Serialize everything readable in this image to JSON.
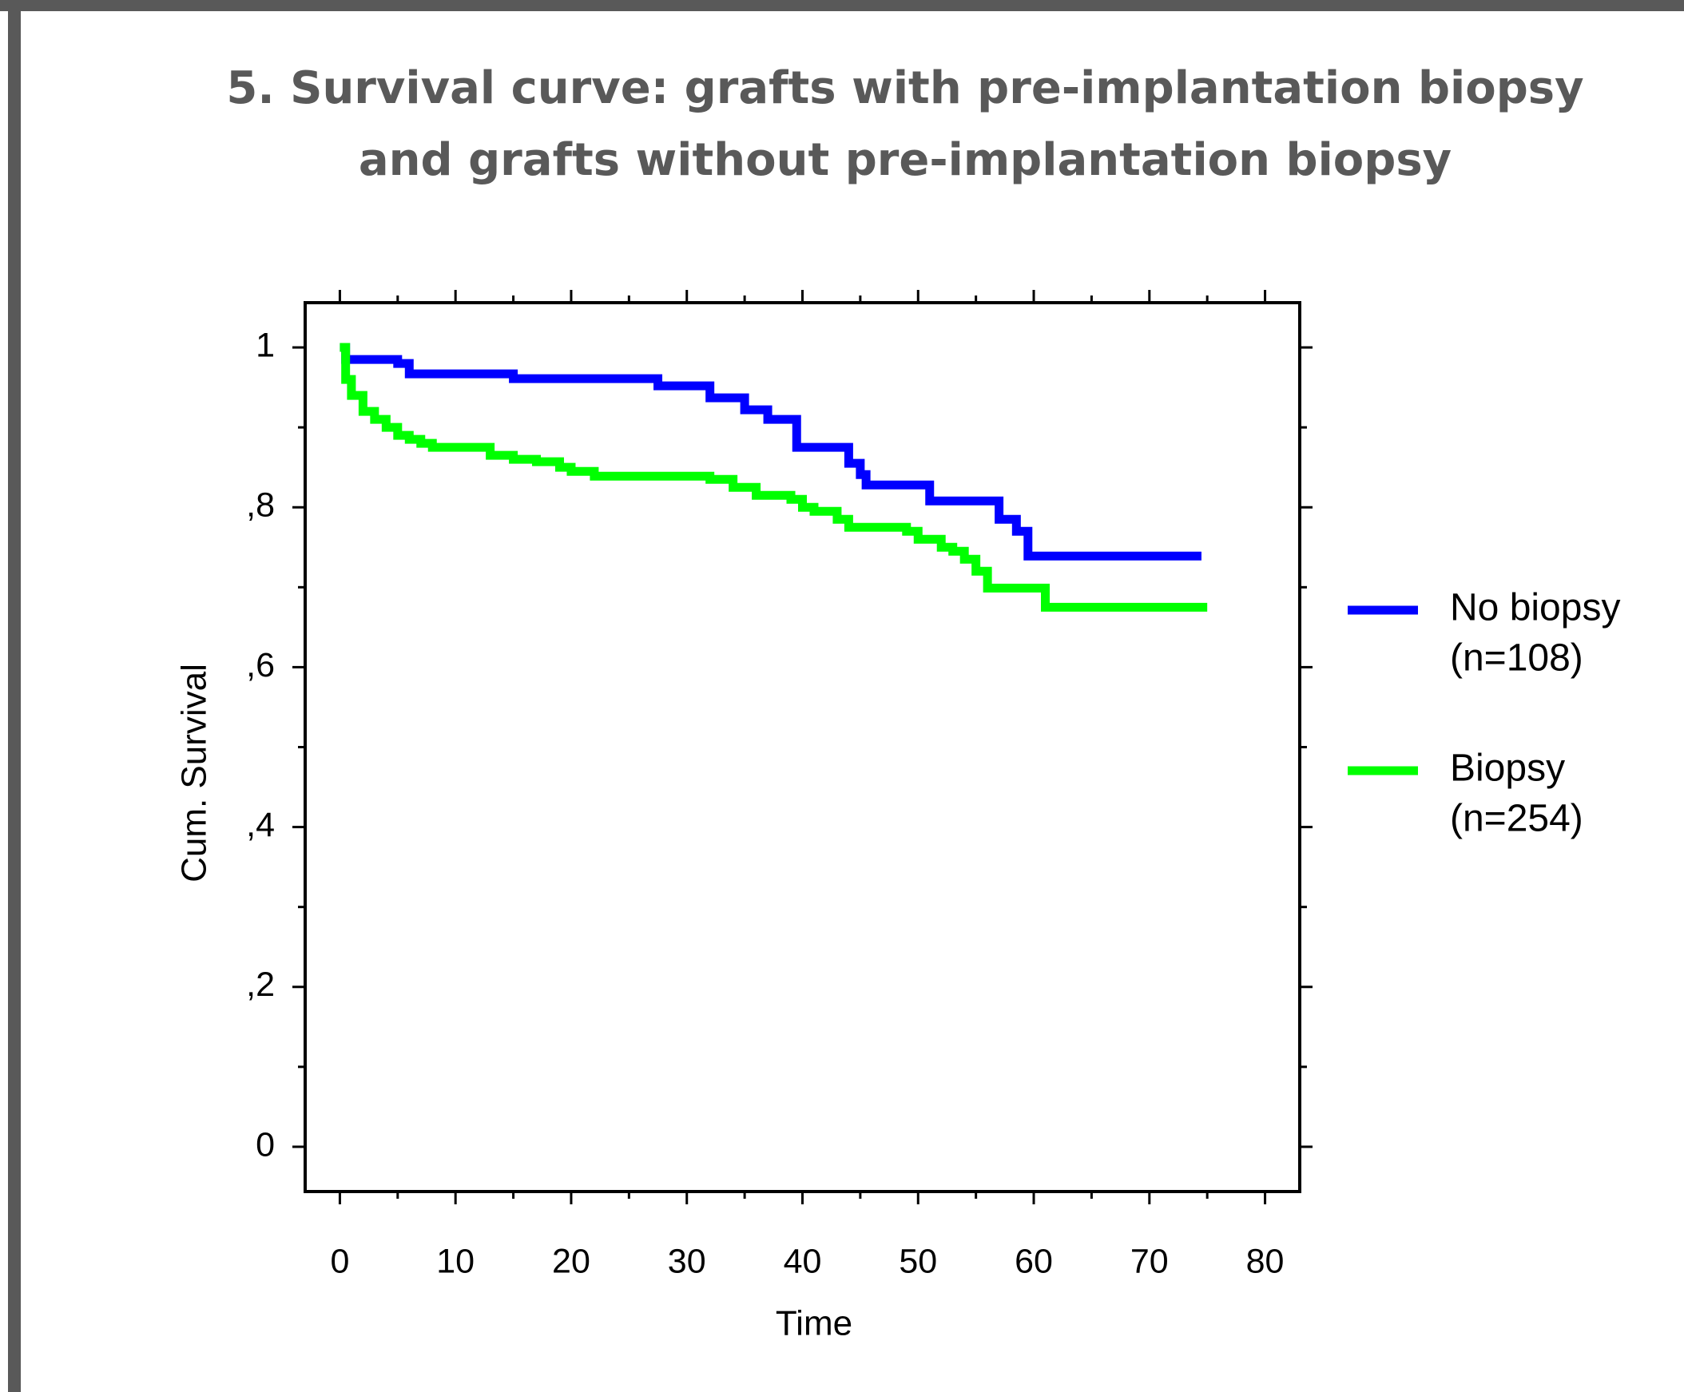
{
  "chart_data": {
    "type": "line",
    "step": true,
    "title": [
      "5. Survival curve: grafts with pre-implantation biopsy",
      "and grafts without pre-implantation biopsy"
    ],
    "x_label": "Time",
    "y_label": "Cum. Survival",
    "xlim": [
      -3,
      83
    ],
    "ylim": [
      -0.056,
      1.056
    ],
    "xticks": [
      0,
      10,
      20,
      30,
      40,
      50,
      60,
      70,
      80
    ],
    "yticks": [
      0,
      {
        "value": 0.2,
        "label": ",2"
      },
      {
        "value": 0.4,
        "label": ",4"
      },
      {
        "value": 0.6,
        "label": ",6"
      },
      {
        "value": 0.8,
        "label": ",8"
      },
      1
    ],
    "grid": false,
    "legend": "right",
    "series": [
      {
        "name": "No biopsy",
        "n_label": "(n=108)",
        "color": "#0000ff",
        "x": [
          0,
          0.5,
          5,
          6,
          15,
          27.5,
          32,
          35,
          37,
          39.5,
          44,
          45,
          45.5,
          51,
          57,
          58.5,
          59.5,
          74.5
        ],
        "values": [
          1.0,
          0.985,
          0.98,
          0.967,
          0.961,
          0.952,
          0.937,
          0.922,
          0.91,
          0.875,
          0.855,
          0.841,
          0.828,
          0.808,
          0.785,
          0.77,
          0.739,
          0.739
        ]
      },
      {
        "name": "Biopsy",
        "n_label": "(n=254)",
        "color": "#00ff00",
        "x": [
          0,
          0.5,
          1,
          2,
          3,
          4,
          5,
          6,
          7,
          8,
          13,
          15,
          17,
          19,
          20,
          22,
          32,
          34,
          36,
          39,
          40,
          41,
          43,
          44,
          49,
          50,
          52,
          53,
          54,
          55,
          56,
          61,
          75
        ],
        "values": [
          1.0,
          0.96,
          0.94,
          0.92,
          0.91,
          0.9,
          0.89,
          0.885,
          0.88,
          0.875,
          0.865,
          0.86,
          0.857,
          0.85,
          0.845,
          0.839,
          0.835,
          0.825,
          0.815,
          0.81,
          0.8,
          0.795,
          0.785,
          0.775,
          0.77,
          0.76,
          0.75,
          0.745,
          0.735,
          0.72,
          0.699,
          0.675,
          0.675
        ]
      }
    ]
  }
}
